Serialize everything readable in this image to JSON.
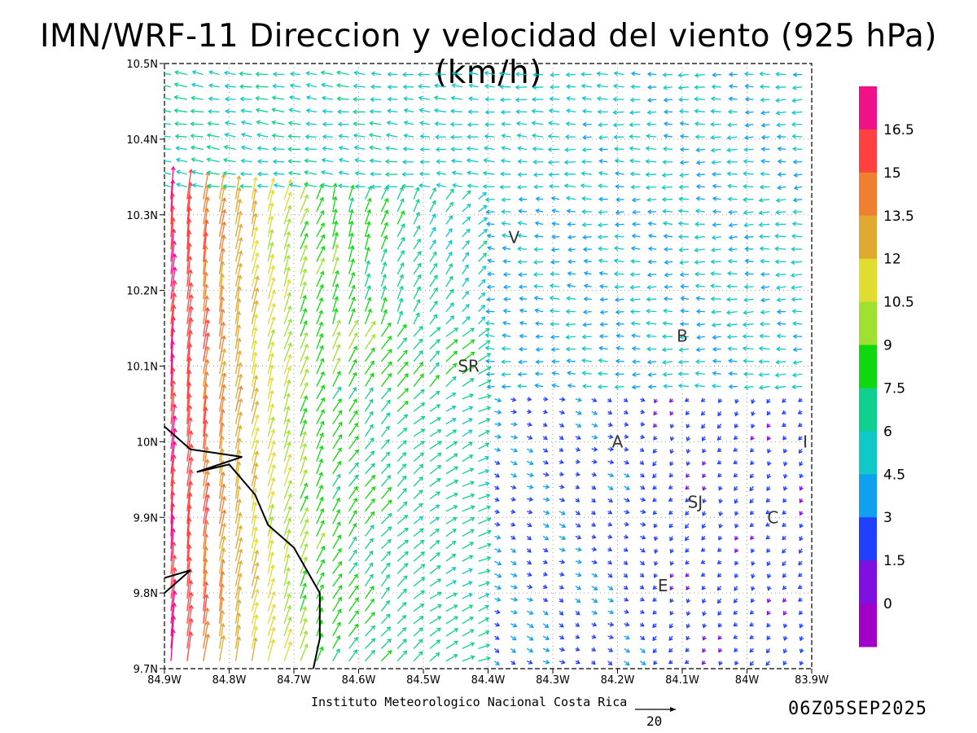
{
  "title": "IMN/WRF-11 Direccion y velocidad del viento (925 hPa)(km/h)",
  "credit": "Instituto Meteorologico Nacional Costa Rica",
  "timestamp": "06Z05SEP2025",
  "reference_vector_label": "20",
  "axes": {
    "x_ticks": [
      "84.9W",
      "84.8W",
      "84.7W",
      "84.6W",
      "84.5W",
      "84.4W",
      "84.3W",
      "84.2W",
      "84.1W",
      "84W",
      "83.9W"
    ],
    "y_ticks": [
      "10.5N",
      "10.4N",
      "10.3N",
      "10.2N",
      "10.1N",
      "10N",
      "9.9N",
      "9.8N",
      "9.7N"
    ],
    "lon_range": [
      -84.9,
      -83.9
    ],
    "lat_range": [
      9.7,
      10.5
    ],
    "grid": "dotted"
  },
  "colorbar": {
    "labels": [
      "16.5",
      "15",
      "13.5",
      "12",
      "10.5",
      "9",
      "7.5",
      "6",
      "4.5",
      "3",
      "1.5",
      "0"
    ],
    "colors": [
      "#ee1188",
      "#ff4040",
      "#ee8030",
      "#e0aa30",
      "#e0dc30",
      "#a0e030",
      "#10d810",
      "#10d090",
      "#10c8c8",
      "#10a0f0",
      "#2040ff",
      "#8010e0",
      "#a000c8"
    ]
  },
  "places": [
    {
      "label": "V",
      "lon": -84.36,
      "lat": 10.27
    },
    {
      "label": "B",
      "lon": -84.1,
      "lat": 10.14
    },
    {
      "label": "SR",
      "lon": -84.43,
      "lat": 10.1
    },
    {
      "label": "A",
      "lon": -84.2,
      "lat": 10.0
    },
    {
      "label": "I",
      "lon": -83.91,
      "lat": 10.0
    },
    {
      "label": "SJ",
      "lon": -84.08,
      "lat": 9.92
    },
    {
      "label": "C",
      "lon": -83.96,
      "lat": 9.9
    },
    {
      "label": "E",
      "lon": -84.13,
      "lat": 9.81
    }
  ],
  "coastline": [
    [
      -84.9,
      10.02
    ],
    [
      -84.86,
      9.99
    ],
    [
      -84.78,
      9.98
    ],
    [
      -84.85,
      9.96
    ],
    [
      -84.8,
      9.97
    ],
    [
      -84.76,
      9.93
    ],
    [
      -84.74,
      9.89
    ],
    [
      -84.7,
      9.86
    ],
    [
      -84.66,
      9.8
    ],
    [
      -84.66,
      9.74
    ],
    [
      -84.67,
      9.7
    ]
  ],
  "coast_spit": [
    [
      -84.9,
      9.82
    ],
    [
      -84.86,
      9.83
    ],
    [
      -84.9,
      9.8
    ]
  ]
}
